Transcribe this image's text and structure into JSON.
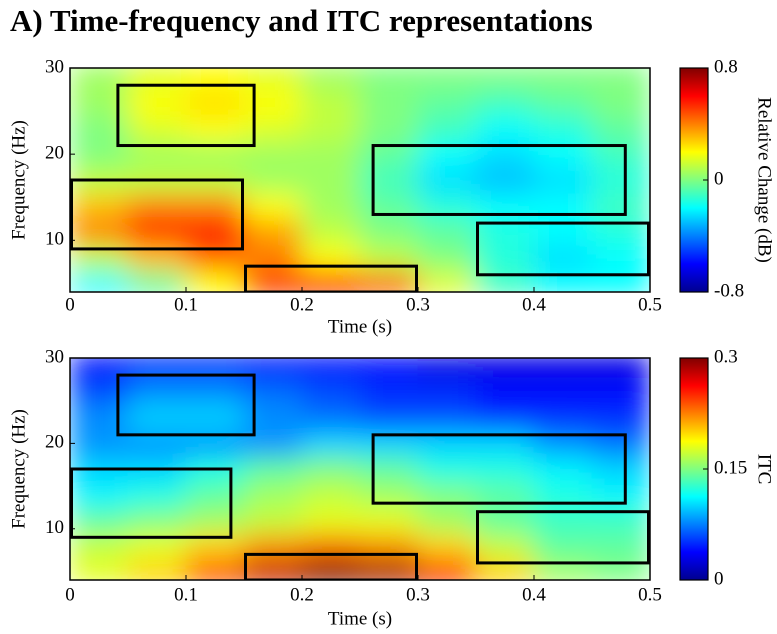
{
  "title": "A) Time-frequency and ITC representations",
  "chart_data": [
    {
      "type": "heatmap",
      "xlabel": "Time (s)",
      "ylabel": "Frequency (Hz)",
      "colorbar_label": "Relative Change (dB)",
      "xlim": [
        0,
        0.5
      ],
      "xticks": [
        0,
        0.1,
        0.2,
        0.3,
        0.4,
        0.5
      ],
      "ylim": [
        4,
        30
      ],
      "yticks": [
        10,
        20,
        30
      ],
      "clim": [
        -0.8,
        0.8
      ],
      "cticks": [
        -0.8,
        0,
        0.8
      ],
      "colormap": "jet",
      "x": [
        0.025,
        0.075,
        0.125,
        0.175,
        0.225,
        0.275,
        0.325,
        0.375,
        0.425,
        0.475
      ],
      "y": [
        5,
        8,
        11,
        14,
        17,
        20,
        23,
        26,
        29
      ],
      "z": [
        [
          -0.2,
          -0.05,
          0.2,
          0.5,
          0.6,
          0.45,
          0.15,
          -0.1,
          -0.2,
          -0.2
        ],
        [
          0.1,
          0.3,
          0.45,
          0.4,
          0.2,
          0.1,
          0,
          -0.15,
          -0.25,
          -0.2
        ],
        [
          0.4,
          0.55,
          0.6,
          0.35,
          0.1,
          0,
          -0.05,
          -0.15,
          -0.2,
          -0.15
        ],
        [
          0.3,
          0.4,
          0.4,
          0.2,
          0.05,
          -0.05,
          -0.15,
          -0.2,
          -0.2,
          -0.1
        ],
        [
          0.1,
          0.1,
          0.1,
          0.05,
          0.05,
          -0.1,
          -0.25,
          -0.3,
          -0.25,
          -0.15
        ],
        [
          0,
          0.05,
          0.05,
          0.05,
          0.05,
          -0.05,
          -0.2,
          -0.25,
          -0.2,
          -0.1
        ],
        [
          0,
          0.15,
          0.2,
          0.15,
          0.1,
          0,
          -0.1,
          -0.2,
          -0.15,
          -0.05
        ],
        [
          0.05,
          0.2,
          0.25,
          0.2,
          0.1,
          0,
          -0.05,
          -0.1,
          -0.05,
          0
        ],
        [
          0.05,
          0.15,
          0.2,
          0.15,
          0.05,
          0,
          0,
          0,
          0,
          0
        ]
      ],
      "regions": [
        {
          "x": [
            0.04,
            0.16
          ],
          "y": [
            21,
            28
          ]
        },
        {
          "x": [
            0,
            0.15
          ],
          "y": [
            9,
            17
          ]
        },
        {
          "x": [
            0.15,
            0.3
          ],
          "y": [
            4,
            7
          ]
        },
        {
          "x": [
            0.26,
            0.48
          ],
          "y": [
            13,
            21
          ]
        },
        {
          "x": [
            0.35,
            0.5
          ],
          "y": [
            6,
            12
          ]
        }
      ]
    },
    {
      "type": "heatmap",
      "xlabel": "Time (s)",
      "ylabel": "Frequency (Hz)",
      "colorbar_label": "ITC",
      "xlim": [
        0,
        0.5
      ],
      "xticks": [
        0,
        0.1,
        0.2,
        0.3,
        0.4,
        0.5
      ],
      "ylim": [
        4,
        30
      ],
      "yticks": [
        10,
        20,
        30
      ],
      "clim": [
        0,
        0.3
      ],
      "cticks": [
        0,
        0.15,
        0.3
      ],
      "colormap": "jet",
      "x": [
        0.025,
        0.075,
        0.125,
        0.175,
        0.225,
        0.275,
        0.325,
        0.375,
        0.425,
        0.475
      ],
      "y": [
        5,
        8,
        11,
        14,
        17,
        20,
        23,
        26,
        29
      ],
      "z": [
        [
          0.18,
          0.2,
          0.24,
          0.28,
          0.3,
          0.29,
          0.26,
          0.2,
          0.16,
          0.15
        ],
        [
          0.17,
          0.18,
          0.2,
          0.22,
          0.23,
          0.22,
          0.2,
          0.17,
          0.14,
          0.14
        ],
        [
          0.14,
          0.15,
          0.16,
          0.17,
          0.18,
          0.18,
          0.16,
          0.14,
          0.13,
          0.13
        ],
        [
          0.11,
          0.12,
          0.14,
          0.16,
          0.17,
          0.16,
          0.15,
          0.14,
          0.12,
          0.11
        ],
        [
          0.1,
          0.1,
          0.12,
          0.14,
          0.15,
          0.14,
          0.12,
          0.12,
          0.11,
          0.1
        ],
        [
          0.08,
          0.08,
          0.08,
          0.08,
          0.1,
          0.1,
          0.1,
          0.1,
          0.08,
          0.07
        ],
        [
          0.08,
          0.1,
          0.1,
          0.08,
          0.07,
          0.06,
          0.06,
          0.05,
          0.05,
          0.05
        ],
        [
          0.06,
          0.08,
          0.08,
          0.07,
          0.06,
          0.05,
          0.05,
          0.04,
          0.04,
          0.04
        ],
        [
          0.04,
          0.05,
          0.05,
          0.04,
          0.04,
          0.04,
          0.03,
          0.03,
          0.03,
          0.03
        ]
      ],
      "regions": [
        {
          "x": [
            0.04,
            0.16
          ],
          "y": [
            21,
            28
          ]
        },
        {
          "x": [
            0,
            0.14
          ],
          "y": [
            9,
            17
          ]
        },
        {
          "x": [
            0.15,
            0.3
          ],
          "y": [
            4,
            7
          ]
        },
        {
          "x": [
            0.26,
            0.48
          ],
          "y": [
            13,
            21
          ]
        },
        {
          "x": [
            0.35,
            0.5
          ],
          "y": [
            6,
            12
          ]
        }
      ]
    }
  ]
}
